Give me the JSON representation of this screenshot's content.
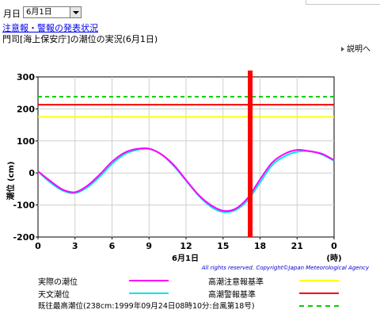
{
  "header": {
    "day_prefix": "月日",
    "selected_day": "6月1日",
    "alert_link": "注意報・警報の発表状況",
    "page_title": "門司[海上保安庁]の潮位の実況(6月1日)",
    "explain_link": "説明へ"
  },
  "colors": {
    "observed": "#ff00ff",
    "astronomical": "#00e6e6",
    "advisory": "#ffff00",
    "warning": "#ff0000",
    "record": "#00d000",
    "now_marker": "#ff0000"
  },
  "chart_data": {
    "type": "line",
    "xlim": [
      0,
      24
    ],
    "ylim": [
      -200,
      300
    ],
    "ylabel": "潮位 (cm)",
    "x_ticks": [
      "0",
      "3",
      "6",
      "9",
      "12",
      "15",
      "18",
      "21",
      "0"
    ],
    "y_ticks": [
      "300",
      "200",
      "100",
      "0",
      "-100",
      "-200"
    ],
    "x_unit": "(時)",
    "date_label": "6月1日",
    "copyright": "All rights reserved. Copyright©Japan Meteorological Agency",
    "current_time_hour": 17.2,
    "thresholds": [
      {
        "name": "高潮注意報基準",
        "value": 175,
        "style": "solid",
        "color": "#ffff00"
      },
      {
        "name": "高潮警報基準",
        "value": 213,
        "style": "solid",
        "color": "#ff0000"
      },
      {
        "name": "既往最高潮位(238cm:1999年09月24日08時10分:台風第18号)",
        "value": 238,
        "style": "dashed",
        "color": "#00d000"
      }
    ],
    "series": [
      {
        "name": "実際の潮位",
        "color": "#ff00ff",
        "x": [
          0,
          1,
          2,
          3,
          4,
          5,
          6,
          7,
          8,
          9,
          10,
          11,
          12,
          13,
          14,
          15,
          16,
          17,
          18,
          19,
          20,
          21,
          22,
          23,
          24
        ],
        "y": [
          5,
          -25,
          -52,
          -60,
          -40,
          -5,
          35,
          63,
          75,
          76,
          58,
          25,
          -22,
          -68,
          -100,
          -118,
          -112,
          -78,
          -20,
          33,
          60,
          72,
          68,
          60,
          40
        ]
      },
      {
        "name": "天文潮位",
        "color": "#00e6e6",
        "x": [
          0,
          1,
          2,
          3,
          4,
          5,
          6,
          7,
          8,
          9,
          10,
          11,
          12,
          13,
          14,
          15,
          16,
          17,
          18,
          19,
          20,
          21,
          22,
          23,
          24
        ],
        "y": [
          5,
          -30,
          -55,
          -63,
          -45,
          -12,
          28,
          58,
          72,
          75,
          58,
          22,
          -24,
          -70,
          -105,
          -122,
          -116,
          -85,
          -30,
          25,
          52,
          66,
          68,
          58,
          38
        ]
      }
    ]
  },
  "legend": {
    "observed": "実際の潮位",
    "astronomical": "天文潮位",
    "advisory": "高潮注意報基準",
    "warning": "高潮警報基準",
    "record": "既往最高潮位(238cm:1999年09月24日08時10分:台風第18号)"
  }
}
